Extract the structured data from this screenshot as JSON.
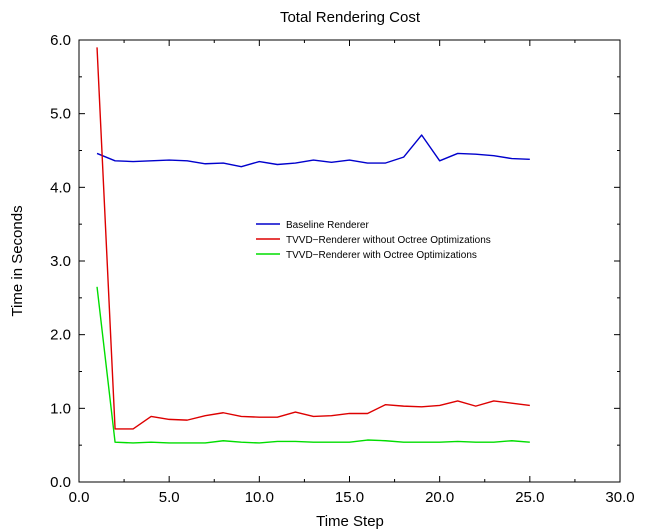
{
  "chart_data": {
    "type": "line",
    "title": "Total Rendering Cost",
    "xlabel": "Time Step",
    "ylabel": "Time in Seconds",
    "xlim": [
      0,
      30
    ],
    "ylim": [
      0,
      6
    ],
    "x_ticks": [
      "0.0",
      "5.0",
      "10.0",
      "15.0",
      "20.0",
      "25.0",
      "30.0"
    ],
    "y_ticks": [
      "0.0",
      "1.0",
      "2.0",
      "3.0",
      "4.0",
      "5.0",
      "6.0"
    ],
    "grid": false,
    "legend_position": "center",
    "x": [
      1,
      2,
      3,
      4,
      5,
      6,
      7,
      8,
      9,
      10,
      11,
      12,
      13,
      14,
      15,
      16,
      17,
      18,
      19,
      20,
      21,
      22,
      23,
      24,
      25
    ],
    "series": [
      {
        "name": "Baseline Renderer",
        "color": "#0000cc",
        "values": [
          4.46,
          4.36,
          4.35,
          4.36,
          4.37,
          4.36,
          4.32,
          4.33,
          4.28,
          4.35,
          4.31,
          4.33,
          4.37,
          4.34,
          4.37,
          4.33,
          4.33,
          4.41,
          4.71,
          4.36,
          4.46,
          4.45,
          4.43,
          4.39,
          4.38
        ]
      },
      {
        "name": "TVVD−Renderer without Octree Optimizations",
        "color": "#dd0000",
        "values": [
          5.9,
          0.72,
          0.72,
          0.89,
          0.85,
          0.84,
          0.9,
          0.94,
          0.89,
          0.88,
          0.88,
          0.95,
          0.89,
          0.9,
          0.93,
          0.93,
          1.05,
          1.03,
          1.02,
          1.04,
          1.1,
          1.03,
          1.1,
          1.07,
          1.04
        ]
      },
      {
        "name": "TVVD−Renderer with Octree Optimizations",
        "color": "#00dd00",
        "values": [
          2.65,
          0.54,
          0.53,
          0.54,
          0.53,
          0.53,
          0.53,
          0.56,
          0.54,
          0.53,
          0.55,
          0.55,
          0.54,
          0.54,
          0.54,
          0.57,
          0.56,
          0.54,
          0.54,
          0.54,
          0.55,
          0.54,
          0.54,
          0.56,
          0.54
        ]
      }
    ]
  }
}
